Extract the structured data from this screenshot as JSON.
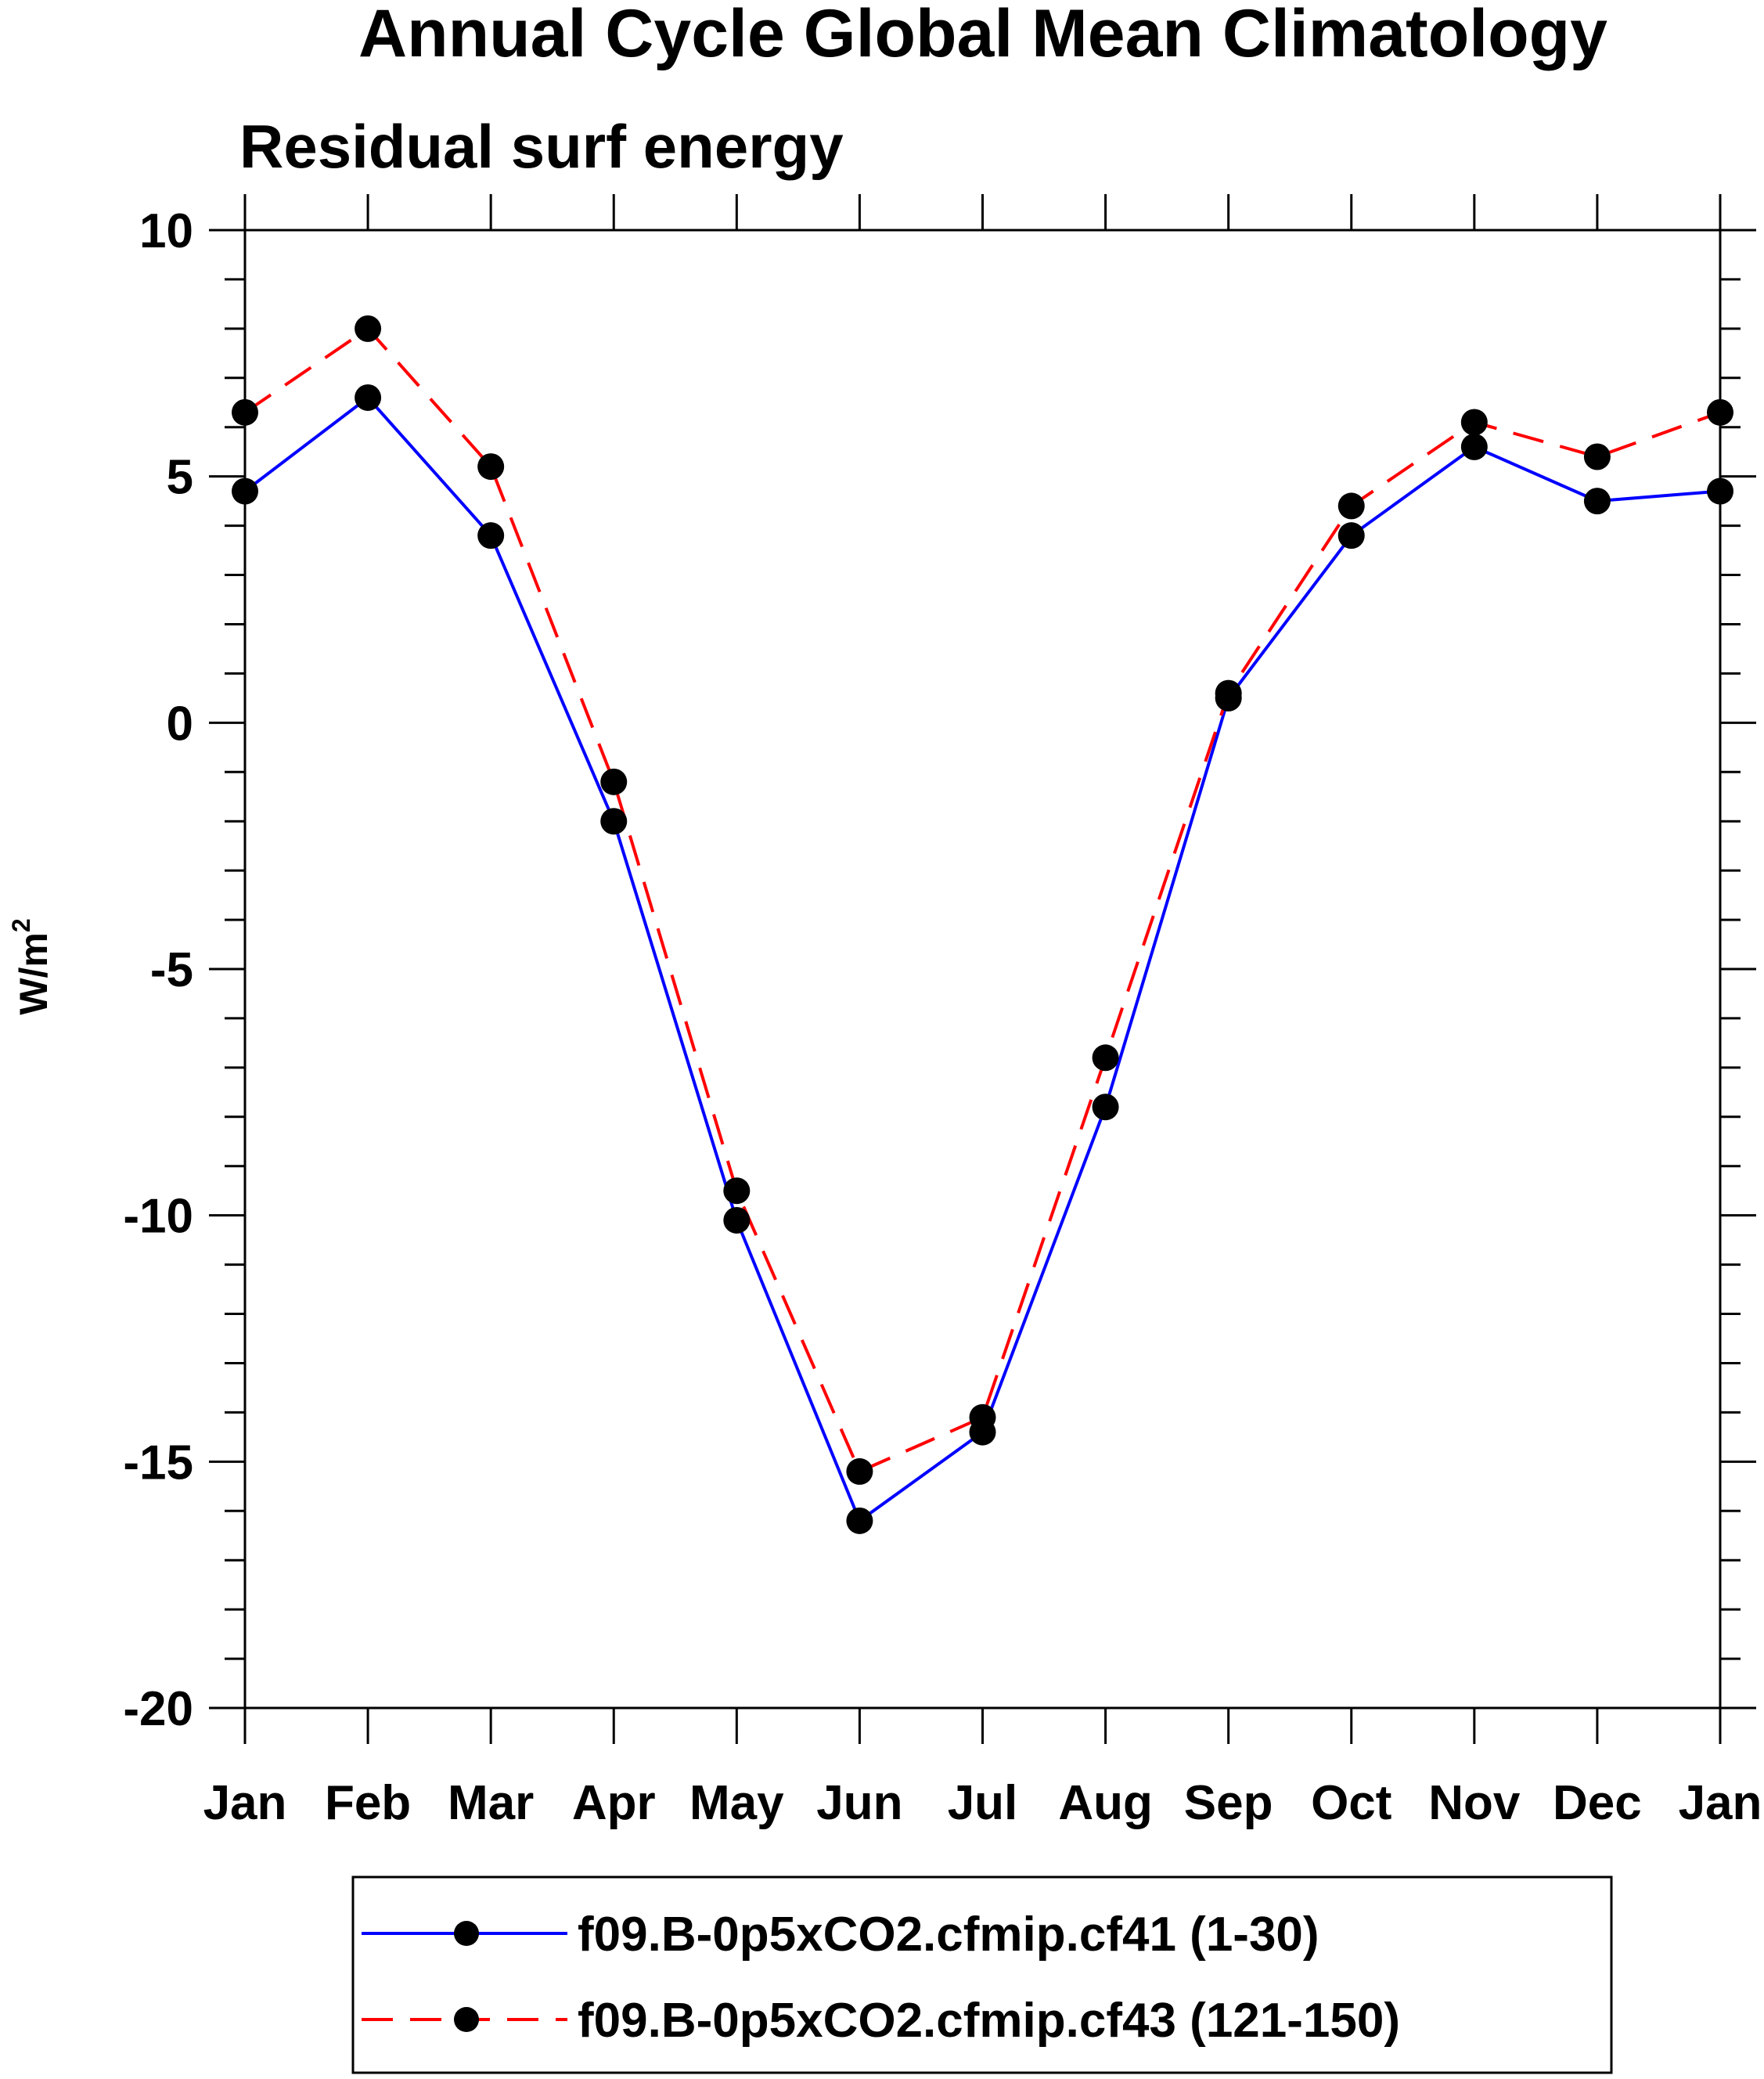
{
  "chart_data": {
    "type": "line",
    "title": "Annual Cycle Global Mean Climatology",
    "subtitle": "Residual surf energy",
    "ylabel": "W/m",
    "ylabel_sup": "2",
    "xlabel": "",
    "categories": [
      "Jan",
      "Feb",
      "Mar",
      "Apr",
      "May",
      "Jun",
      "Jul",
      "Aug",
      "Sep",
      "Oct",
      "Nov",
      "Dec",
      "Jan"
    ],
    "ylim": [
      -20,
      10
    ],
    "yticks": [
      10,
      5,
      0,
      -5,
      -10,
      -15,
      -20
    ],
    "ytick_labels": [
      "10",
      "5",
      "0",
      "-5",
      "-10",
      "-15",
      "-20"
    ],
    "y_minor_step": 1,
    "grid": false,
    "legend_position": "bottom",
    "series": [
      {
        "name": "f09.B-0p5xCO2.cfmip.cf41 (1-30)",
        "color": "#0000ff",
        "line_style": "solid",
        "marker": "filled-circle",
        "values": [
          4.7,
          6.6,
          3.8,
          -2.0,
          -10.1,
          -16.2,
          -14.4,
          -7.8,
          0.5,
          3.8,
          5.6,
          4.5,
          4.7
        ]
      },
      {
        "name": "f09.B-0p5xCO2.cfmip.cf43 (121-150)",
        "color": "#ff0000",
        "line_style": "dashed",
        "marker": "filled-circle",
        "values": [
          6.3,
          8.0,
          5.2,
          -1.2,
          -9.5,
          -15.2,
          -14.1,
          -6.8,
          0.6,
          4.4,
          6.1,
          5.4,
          6.3
        ]
      }
    ]
  }
}
